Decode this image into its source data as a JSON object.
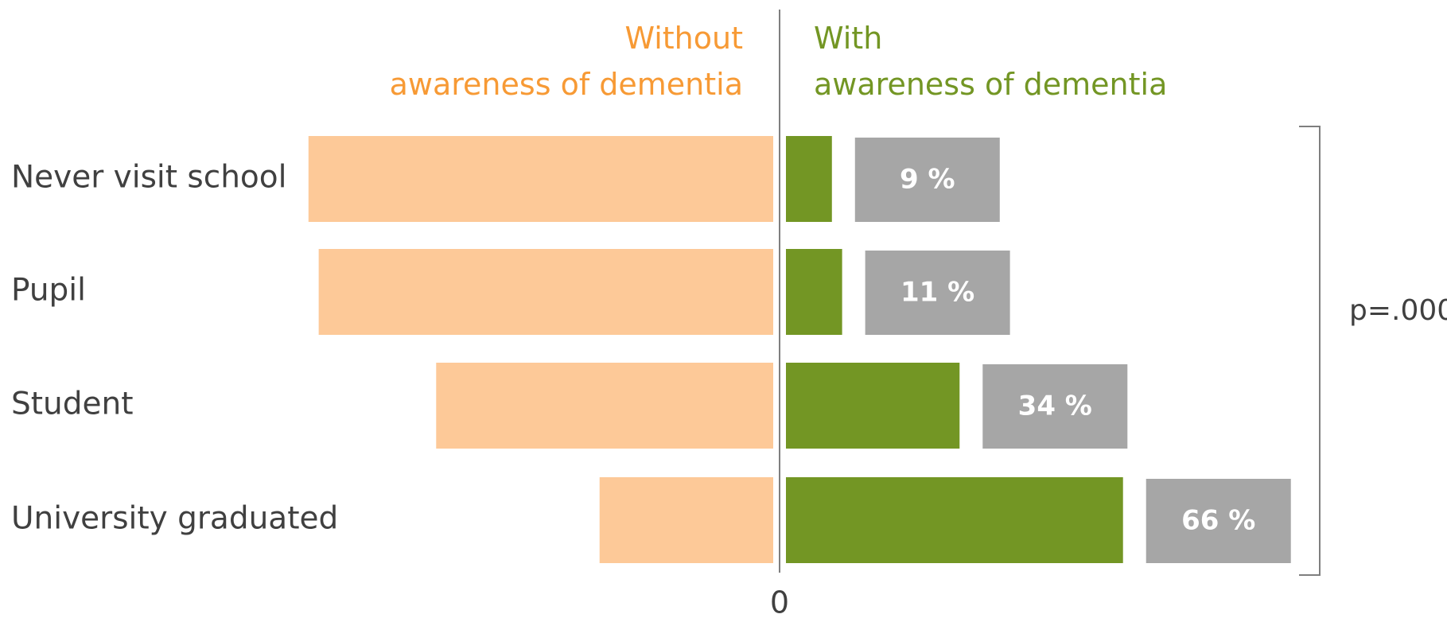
{
  "chart_data": {
    "type": "diverging-bar",
    "categories": [
      "Never visit school",
      "Pupil",
      "Student",
      "University graduated"
    ],
    "series": [
      {
        "name": "Without awareness of dementia",
        "color": "#fdc998",
        "text_color": "#f79a35",
        "values": [
          91,
          89,
          66,
          34
        ]
      },
      {
        "name": "With awareness of dementia",
        "color": "#739624",
        "text_color": "#739624",
        "values": [
          9,
          11,
          34,
          66
        ],
        "value_labels": [
          "9 %",
          "11 %",
          "34 %",
          "66 %"
        ],
        "label_box_color": "#a6a6a6"
      }
    ],
    "xlim": [
      0,
      100
    ],
    "xticks": [
      0
    ],
    "annotation": "p=.000"
  }
}
